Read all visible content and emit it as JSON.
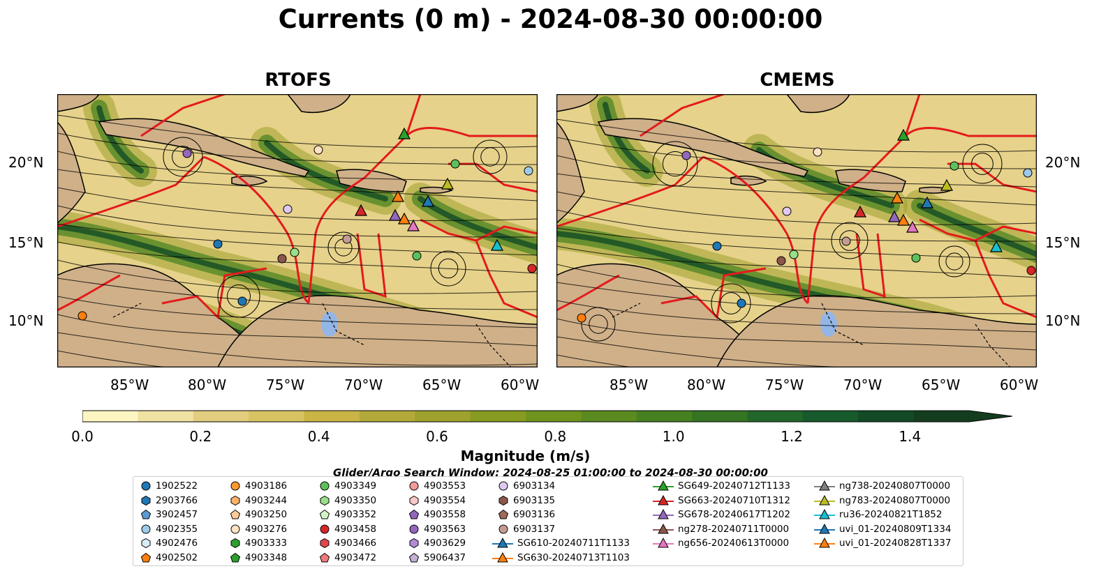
{
  "title": "Currents (0 m) - 2024-08-30 00:00:00",
  "panels": [
    {
      "title": "RTOFS"
    },
    {
      "title": "CMEMS"
    }
  ],
  "map": {
    "lon_ticks": [
      "85°W",
      "80°W",
      "75°W",
      "70°W",
      "65°W",
      "60°W"
    ],
    "lat_ticks": [
      "20°N",
      "15°N",
      "10°N"
    ]
  },
  "colorbar": {
    "label": "Magnitude (m/s)",
    "ticks": [
      "0.0",
      "0.2",
      "0.4",
      "0.6",
      "0.8",
      "1.0",
      "1.2",
      "1.4"
    ],
    "colors": [
      "#fdf6c2",
      "#f0e2a2",
      "#e2cd7f",
      "#d8c362",
      "#c9b445",
      "#b3a93a",
      "#9ea12e",
      "#879b21",
      "#6f941e",
      "#5a8a20",
      "#468020",
      "#357423",
      "#23662a",
      "#175a2b",
      "#124b26",
      "#143d1f"
    ]
  },
  "legend": {
    "title": "Glider/Argo Search Window: 2024-08-25 01:00:00 to 2024-08-30 00:00:00",
    "argo": [
      {
        "label": "1902522",
        "color": "#1f77b4",
        "shape": "circle"
      },
      {
        "label": "2903766",
        "color": "#1f77b4",
        "shape": "hexagon"
      },
      {
        "label": "3902457",
        "color": "#5a9bd4",
        "shape": "pentagon"
      },
      {
        "label": "4902355",
        "color": "#9ecae9",
        "shape": "circle"
      },
      {
        "label": "4902476",
        "color": "#d6ecf7",
        "shape": "hexagon"
      },
      {
        "label": "4902502",
        "color": "#ff7f0e",
        "shape": "pentagon"
      },
      {
        "label": "4903186",
        "color": "#ff9a2e",
        "shape": "circle"
      },
      {
        "label": "4903244",
        "color": "#ffb36b",
        "shape": "hexagon"
      },
      {
        "label": "4903250",
        "color": "#ffcc99",
        "shape": "pentagon"
      },
      {
        "label": "4903276",
        "color": "#fde2c4",
        "shape": "circle"
      },
      {
        "label": "4903333",
        "color": "#2ca02c",
        "shape": "hexagon"
      },
      {
        "label": "4903348",
        "color": "#2ca02c",
        "shape": "pentagon"
      },
      {
        "label": "4903349",
        "color": "#5cc15c",
        "shape": "circle"
      },
      {
        "label": "4903350",
        "color": "#98df8a",
        "shape": "hexagon"
      },
      {
        "label": "4903352",
        "color": "#d4f5c8",
        "shape": "pentagon"
      },
      {
        "label": "4903458",
        "color": "#d62728",
        "shape": "circle"
      },
      {
        "label": "4903466",
        "color": "#e0474a",
        "shape": "hexagon"
      },
      {
        "label": "4903472",
        "color": "#f07a7a",
        "shape": "pentagon"
      },
      {
        "label": "4903553",
        "color": "#f29a9a",
        "shape": "circle"
      },
      {
        "label": "4903554",
        "color": "#fcc7c7",
        "shape": "hexagon"
      },
      {
        "label": "4903558",
        "color": "#9467bd",
        "shape": "pentagon"
      },
      {
        "label": "4903563",
        "color": "#9467bd",
        "shape": "circle"
      },
      {
        "label": "4903629",
        "color": "#b08ad6",
        "shape": "hexagon"
      },
      {
        "label": "5906437",
        "color": "#c5b0d5",
        "shape": "pentagon"
      },
      {
        "label": "6903134",
        "color": "#e0c8f0",
        "shape": "circle"
      },
      {
        "label": "6903135",
        "color": "#8c564b",
        "shape": "hexagon"
      },
      {
        "label": "6903136",
        "color": "#9c6b5b",
        "shape": "pentagon"
      },
      {
        "label": "6903137",
        "color": "#c49c94",
        "shape": "circle"
      }
    ],
    "gliders": [
      {
        "label": "SG610-20240711T1133",
        "color": "#1f77b4"
      },
      {
        "label": "SG630-20240713T1103",
        "color": "#ff7f0e"
      },
      {
        "label": "SG649-20240712T1133",
        "color": "#2ca02c"
      },
      {
        "label": "SG663-20240710T1312",
        "color": "#d62728"
      },
      {
        "label": "SG678-20240617T1202",
        "color": "#9467bd"
      },
      {
        "label": "ng278-20240711T0000",
        "color": "#8c564b"
      },
      {
        "label": "ng656-20240613T0000",
        "color": "#e377c2"
      },
      {
        "label": "ng738-20240807T0000",
        "color": "#7f7f7f"
      },
      {
        "label": "ng783-20240807T0000",
        "color": "#bcbd22"
      },
      {
        "label": "ru36-20240821T1852",
        "color": "#17becf"
      },
      {
        "label": "uvi_01-20240809T1334",
        "color": "#1f77b4"
      },
      {
        "label": "uvi_01-20240828T1337",
        "color": "#ff7f0e"
      }
    ]
  }
}
